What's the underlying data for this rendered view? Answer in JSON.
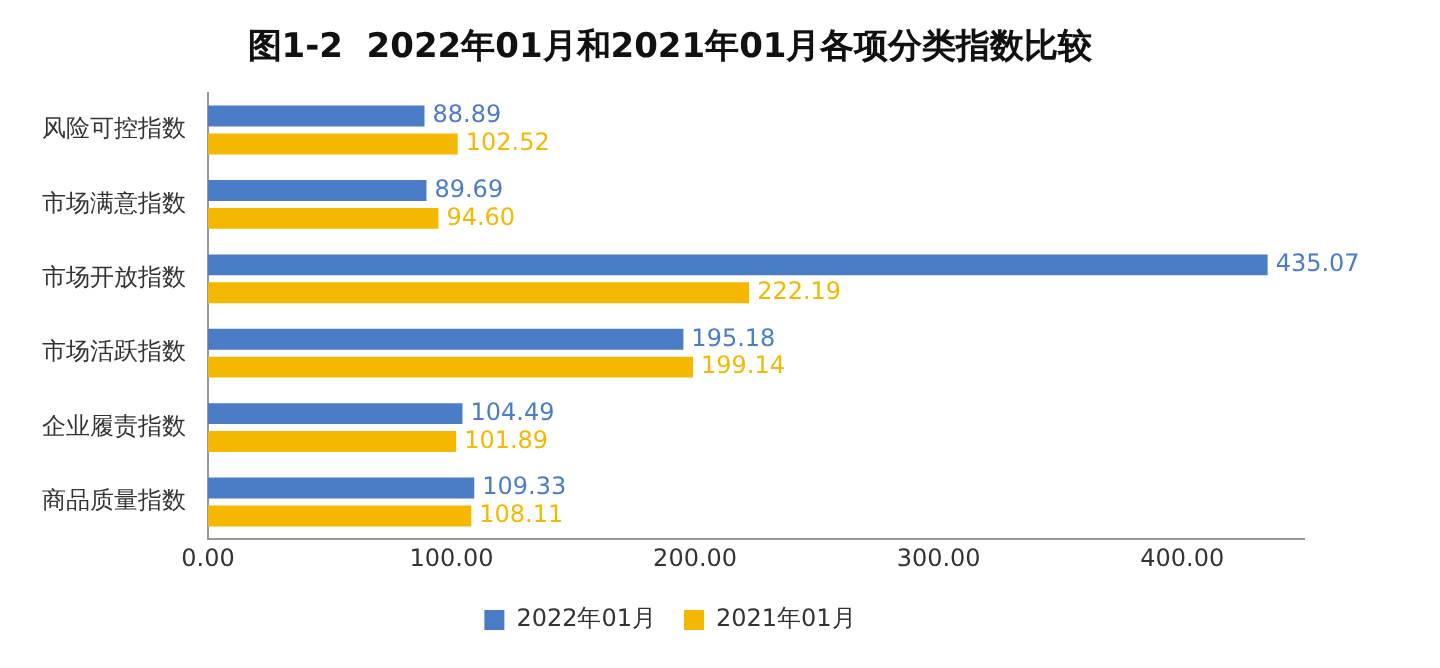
{
  "chart_data": {
    "type": "bar",
    "orientation": "horizontal",
    "title": "图1-2  2022年01月和2021年01月各项分类指数比较",
    "categories": [
      "风险可控指数",
      "市场满意指数",
      "市场开放指数",
      "市场活跃指数",
      "企业履责指数",
      "商品质量指数"
    ],
    "series": [
      {
        "name": "2022年01月",
        "color": "#4a7dc5",
        "values": [
          88.89,
          89.69,
          435.07,
          195.18,
          104.49,
          109.33
        ],
        "value_labels": [
          "88.89",
          "89.69",
          "435.07",
          "195.18",
          "104.49",
          "109.33"
        ]
      },
      {
        "name": "2021年01月",
        "color": "#f5b800",
        "values": [
          102.52,
          94.6,
          222.19,
          199.14,
          101.89,
          108.11
        ],
        "value_labels": [
          "102.52",
          "94.60",
          "222.19",
          "199.14",
          "101.89",
          "108.11"
        ]
      }
    ],
    "xlim": [
      0,
      450
    ],
    "xticks": [
      {
        "value": 0,
        "label": "0.00"
      },
      {
        "value": 100,
        "label": "100.00"
      },
      {
        "value": 200,
        "label": "200.00"
      },
      {
        "value": 300,
        "label": "300.00"
      },
      {
        "value": 400,
        "label": "400.00"
      }
    ],
    "grid": false,
    "legend": "bottom"
  }
}
